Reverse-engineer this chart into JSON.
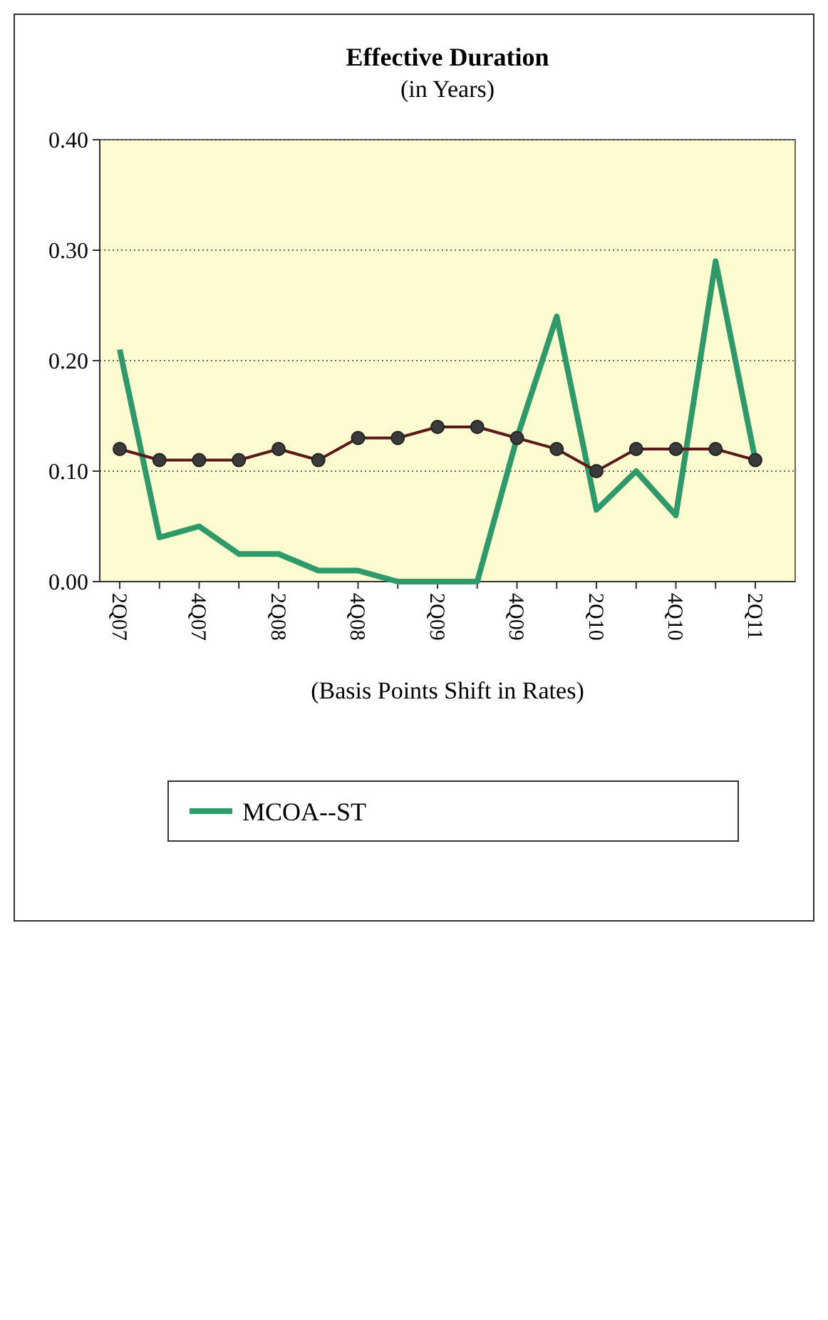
{
  "chart_data": {
    "type": "line",
    "title": "Effective Duration",
    "subtitle": "(in Years)",
    "xlabel": "(Basis Points Shift in Rates)",
    "categories": [
      "2Q07",
      null,
      "4Q07",
      null,
      "2Q08",
      null,
      "4Q08",
      null,
      "2Q09",
      null,
      "4Q09",
      null,
      "2Q10",
      null,
      "4Q10",
      null,
      "2Q11"
    ],
    "series": [
      {
        "name": "MCOA--ST",
        "color": "#2e9a6a",
        "marker": "none",
        "values": [
          0.21,
          0.04,
          0.05,
          0.025,
          0.025,
          0.01,
          0.01,
          0.0,
          0.0,
          0.0,
          0.13,
          0.24,
          0.065,
          0.1,
          0.06,
          0.29,
          0.11
        ]
      },
      {
        "color": "#5a1a1a",
        "marker": "circle",
        "values": [
          0.12,
          0.11,
          0.11,
          0.11,
          0.12,
          0.11,
          0.13,
          0.13,
          0.14,
          0.14,
          0.13,
          0.12,
          0.1,
          0.12,
          0.12,
          0.12,
          0.11
        ]
      }
    ],
    "ylim": [
      0,
      0.4
    ],
    "yticks": [
      {
        "value": 0,
        "label": "0.00"
      },
      {
        "value": 0.1,
        "label": "0.10"
      },
      {
        "value": 0.2,
        "label": "0.20"
      },
      {
        "value": 0.3,
        "label": "0.30"
      },
      {
        "value": 0.4,
        "label": "0.40"
      }
    ],
    "grid": "y",
    "legend": "bottom"
  }
}
